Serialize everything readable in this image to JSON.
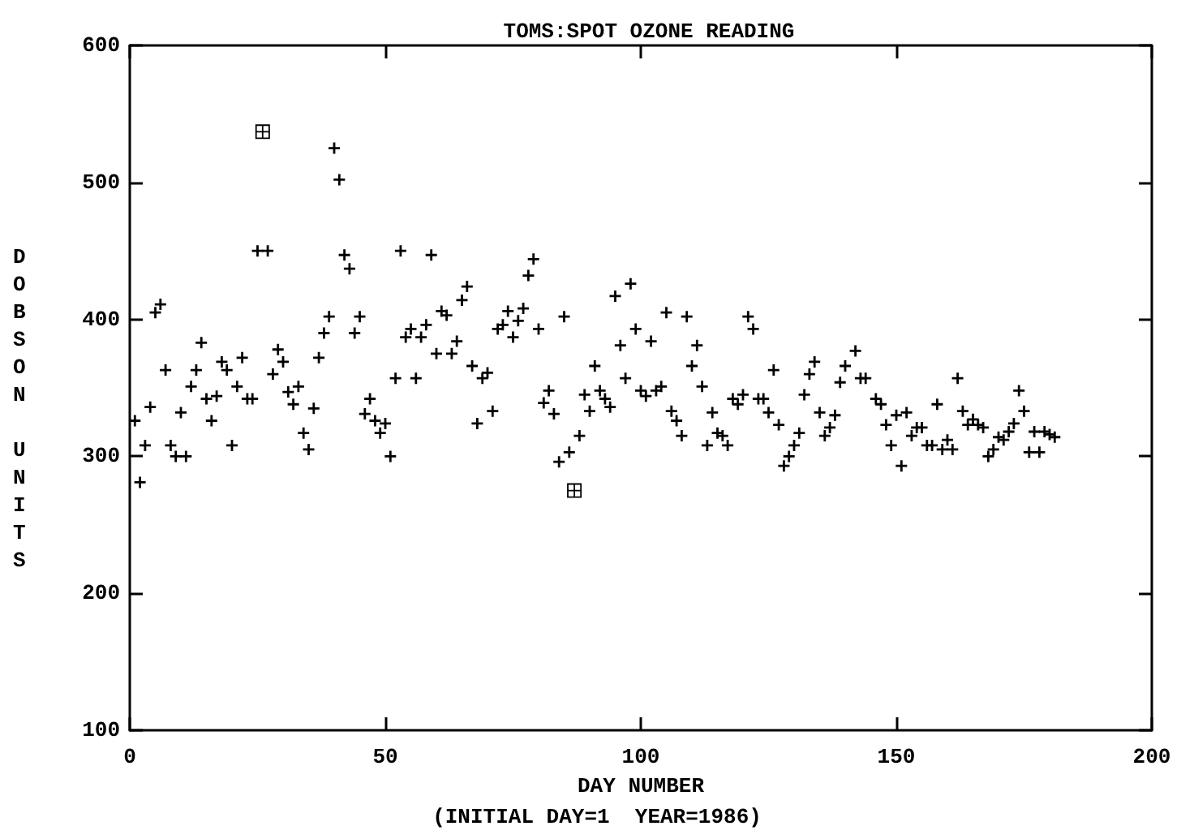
{
  "chart_data": {
    "type": "scatter",
    "title": "TOMS:SPOT OZONE READING",
    "xlabel": "DAY NUMBER",
    "ylabel": "DOBSON UNITS",
    "annotations": [
      "(INITIAL DAY=1  YEAR=1986)"
    ],
    "xlim": [
      0,
      200
    ],
    "xticks": [
      0,
      50,
      100,
      150,
      200
    ],
    "ylim": [
      100,
      600
    ],
    "yticks": [
      100,
      200,
      300,
      400,
      500,
      600
    ],
    "series": [
      {
        "color": "#000000",
        "marker": "cross",
        "x": [
          1,
          2,
          3,
          4,
          5,
          6,
          7,
          8,
          9,
          10,
          11,
          12,
          13,
          14,
          15,
          16,
          17,
          18,
          19,
          20,
          21,
          22,
          23,
          24,
          25,
          27,
          28,
          29,
          30,
          31,
          32,
          33,
          34,
          35,
          36,
          37,
          38,
          39,
          40,
          41,
          42,
          43,
          44,
          45,
          46,
          47,
          48,
          49,
          50,
          51,
          52,
          53,
          54,
          55,
          56,
          57,
          58,
          59,
          60,
          61,
          62,
          63,
          64,
          65,
          66,
          67,
          68,
          69,
          70,
          71,
          72,
          73,
          74,
          75,
          76,
          77,
          78,
          79,
          80,
          81,
          82,
          83,
          84,
          85,
          86,
          88,
          89,
          90,
          91,
          92,
          93,
          94,
          95,
          96,
          97,
          98,
          99,
          100,
          101,
          102,
          103,
          104,
          105,
          106,
          107,
          108,
          109,
          110,
          111,
          112,
          113,
          114,
          115,
          116,
          117,
          118,
          119,
          120,
          121,
          122,
          123,
          124,
          125,
          126,
          127,
          128,
          129,
          130,
          131,
          132,
          133,
          134,
          135,
          136,
          137,
          138,
          139,
          140,
          142,
          143,
          144,
          146,
          147,
          148,
          149,
          150,
          151,
          152,
          153,
          154,
          155,
          156,
          157,
          158,
          159,
          160,
          161,
          162,
          163,
          164,
          165,
          166,
          167,
          168,
          169,
          170,
          171,
          172,
          173,
          174,
          175,
          176,
          177,
          178,
          179,
          180,
          181
        ],
        "values": [
          326,
          281,
          308,
          336,
          405,
          411,
          363,
          308,
          300,
          332,
          300,
          351,
          363,
          383,
          342,
          326,
          344,
          369,
          363,
          308,
          351,
          372,
          342,
          342,
          450,
          450,
          360,
          378,
          369,
          347,
          338,
          351,
          317,
          305,
          335,
          372,
          390,
          402,
          525,
          502,
          447,
          437,
          390,
          402,
          331,
          342,
          326,
          317,
          324,
          300,
          357,
          450,
          387,
          393,
          357,
          387,
          396,
          447,
          375,
          406,
          403,
          375,
          384,
          414,
          424,
          366,
          324,
          357,
          361,
          333,
          393,
          396,
          406,
          387,
          399,
          408,
          432,
          444,
          393,
          339,
          348,
          331,
          296,
          402,
          303,
          315,
          345,
          333,
          366,
          348,
          342,
          336,
          417,
          381,
          357,
          426,
          393,
          348,
          344,
          384,
          348,
          351,
          405,
          333,
          326,
          315,
          402,
          366,
          381,
          351,
          308,
          332,
          317,
          315,
          308,
          342,
          338,
          345,
          402,
          393,
          342,
          342,
          332,
          363,
          323,
          293,
          300,
          308,
          317,
          345,
          360,
          369,
          332,
          315,
          321,
          330,
          354,
          366,
          377,
          357,
          357,
          342,
          338,
          323,
          308,
          330,
          293,
          332,
          315,
          321,
          321,
          308,
          308,
          338,
          305,
          312,
          305,
          357,
          333,
          323,
          327,
          323,
          321,
          300,
          305,
          314,
          312,
          318,
          324,
          348,
          333,
          303,
          318,
          303,
          318,
          316,
          314
        ]
      },
      {
        "color": "#000000",
        "marker": "square",
        "x": [
          26,
          87
        ],
        "values": [
          537,
          275
        ]
      }
    ]
  }
}
